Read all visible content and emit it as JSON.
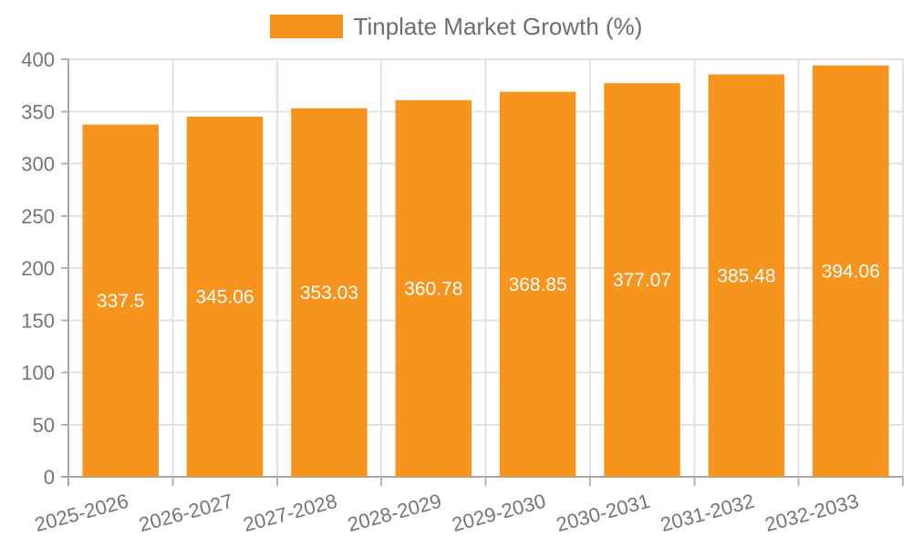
{
  "legend": {
    "label": "Tinplate Market Growth (%)"
  },
  "chart_data": {
    "type": "bar",
    "title": "Tinplate Market Growth (%)",
    "categories": [
      "2025-2026",
      "2026-2027",
      "2027-2028",
      "2028-2029",
      "2029-2030",
      "2030-2031",
      "2031-2032",
      "2032-2033"
    ],
    "series": [
      {
        "name": "Tinplate Market Growth (%)",
        "values": [
          337.5,
          345.06,
          353.03,
          360.78,
          368.85,
          377.07,
          385.48,
          394.06
        ]
      }
    ],
    "value_labels": [
      "337.5",
      "345.06",
      "353.03",
      "360.78",
      "368.85",
      "377.07",
      "385.48",
      "394.06"
    ],
    "xlabel": "",
    "ylabel": "",
    "ylim": [
      0,
      400
    ],
    "ytick_step": 50,
    "grid": true,
    "legend_position": "top-center"
  },
  "colors": {
    "bar": "#f7941e",
    "grid": "#e3e3e3",
    "axis": "#a6a6a6",
    "tick": "#b3b3b3",
    "tick_text": "#757575",
    "legend_text": "#6e6e6e",
    "value_label": "#ffffff",
    "background": "#ffffff"
  }
}
